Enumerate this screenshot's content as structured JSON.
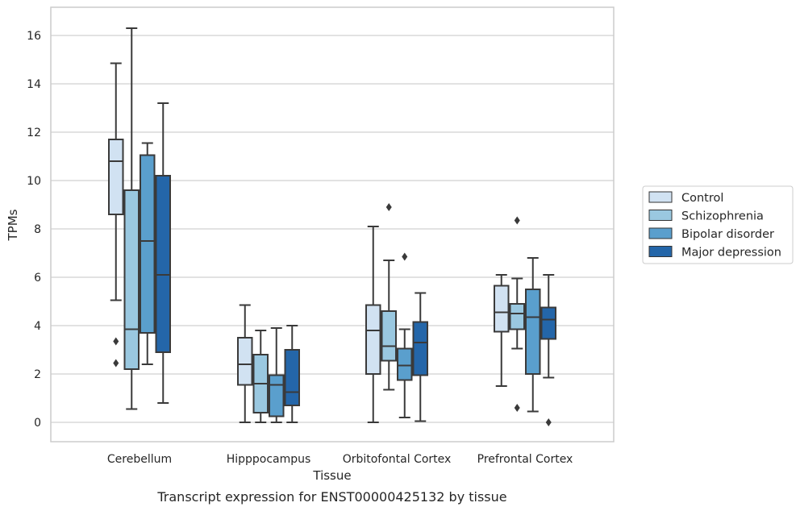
{
  "chart_data": {
    "type": "box",
    "caption": "Transcript expression for ENST00000425132 by tissue",
    "xlabel": "Tissue",
    "ylabel": "TPMs",
    "ylim": [
      -0.8,
      17.1
    ],
    "yticks": [
      0,
      2,
      4,
      6,
      8,
      10,
      12,
      14,
      16
    ],
    "grid": "horizontal",
    "legend_position": "right",
    "categories": [
      "Cerebellum",
      "Hipppocampus",
      "Orbitofontal Cortex",
      "Prefrontal Cortex"
    ],
    "series": [
      {
        "name": "Control",
        "color": "#d1e2f2",
        "boxes": [
          {
            "whislo": 5.05,
            "q1": 8.6,
            "med": 10.8,
            "q3": 11.7,
            "whishi": 14.85,
            "fliers": [
              3.35,
              2.45
            ]
          },
          {
            "whislo": 0.0,
            "q1": 1.55,
            "med": 2.4,
            "q3": 3.5,
            "whishi": 4.85,
            "fliers": []
          },
          {
            "whislo": 0.0,
            "q1": 2.0,
            "med": 3.8,
            "q3": 4.85,
            "whishi": 8.1,
            "fliers": []
          },
          {
            "whislo": 1.5,
            "q1": 3.75,
            "med": 4.55,
            "q3": 5.65,
            "whishi": 6.1,
            "fliers": []
          }
        ]
      },
      {
        "name": "Schizophrenia",
        "color": "#9ac8e0",
        "boxes": [
          {
            "whislo": 0.55,
            "q1": 2.2,
            "med": 3.85,
            "q3": 9.6,
            "whishi": 16.3,
            "fliers": []
          },
          {
            "whislo": 0.0,
            "q1": 0.4,
            "med": 1.6,
            "q3": 2.8,
            "whishi": 3.8,
            "fliers": []
          },
          {
            "whislo": 1.35,
            "q1": 2.55,
            "med": 3.15,
            "q3": 4.6,
            "whishi": 6.7,
            "fliers": [
              8.9
            ]
          },
          {
            "whislo": 3.05,
            "q1": 3.85,
            "med": 4.5,
            "q3": 4.9,
            "whishi": 5.95,
            "fliers": [
              8.35,
              0.6
            ]
          }
        ]
      },
      {
        "name": "Bipolar disorder",
        "color": "#5a9fcd",
        "boxes": [
          {
            "whislo": 2.4,
            "q1": 3.7,
            "med": 7.5,
            "q3": 11.05,
            "whishi": 11.55,
            "fliers": []
          },
          {
            "whislo": 0.0,
            "q1": 0.25,
            "med": 1.55,
            "q3": 1.95,
            "whishi": 3.9,
            "fliers": []
          },
          {
            "whislo": 0.2,
            "q1": 1.75,
            "med": 2.35,
            "q3": 3.05,
            "whishi": 3.85,
            "fliers": [
              6.85
            ]
          },
          {
            "whislo": 0.45,
            "q1": 2.0,
            "med": 4.35,
            "q3": 5.5,
            "whishi": 6.8,
            "fliers": []
          }
        ]
      },
      {
        "name": "Major depression",
        "color": "#2466a9",
        "boxes": [
          {
            "whislo": 0.8,
            "q1": 2.9,
            "med": 6.1,
            "q3": 10.2,
            "whishi": 13.2,
            "fliers": []
          },
          {
            "whislo": 0.0,
            "q1": 0.7,
            "med": 1.25,
            "q3": 3.0,
            "whishi": 4.0,
            "fliers": []
          },
          {
            "whislo": 0.05,
            "q1": 1.95,
            "med": 3.3,
            "q3": 4.15,
            "whishi": 5.35,
            "fliers": []
          },
          {
            "whislo": 1.85,
            "q1": 3.45,
            "med": 4.25,
            "q3": 4.75,
            "whishi": 6.1,
            "fliers": [
              0.0
            ]
          }
        ]
      }
    ]
  }
}
